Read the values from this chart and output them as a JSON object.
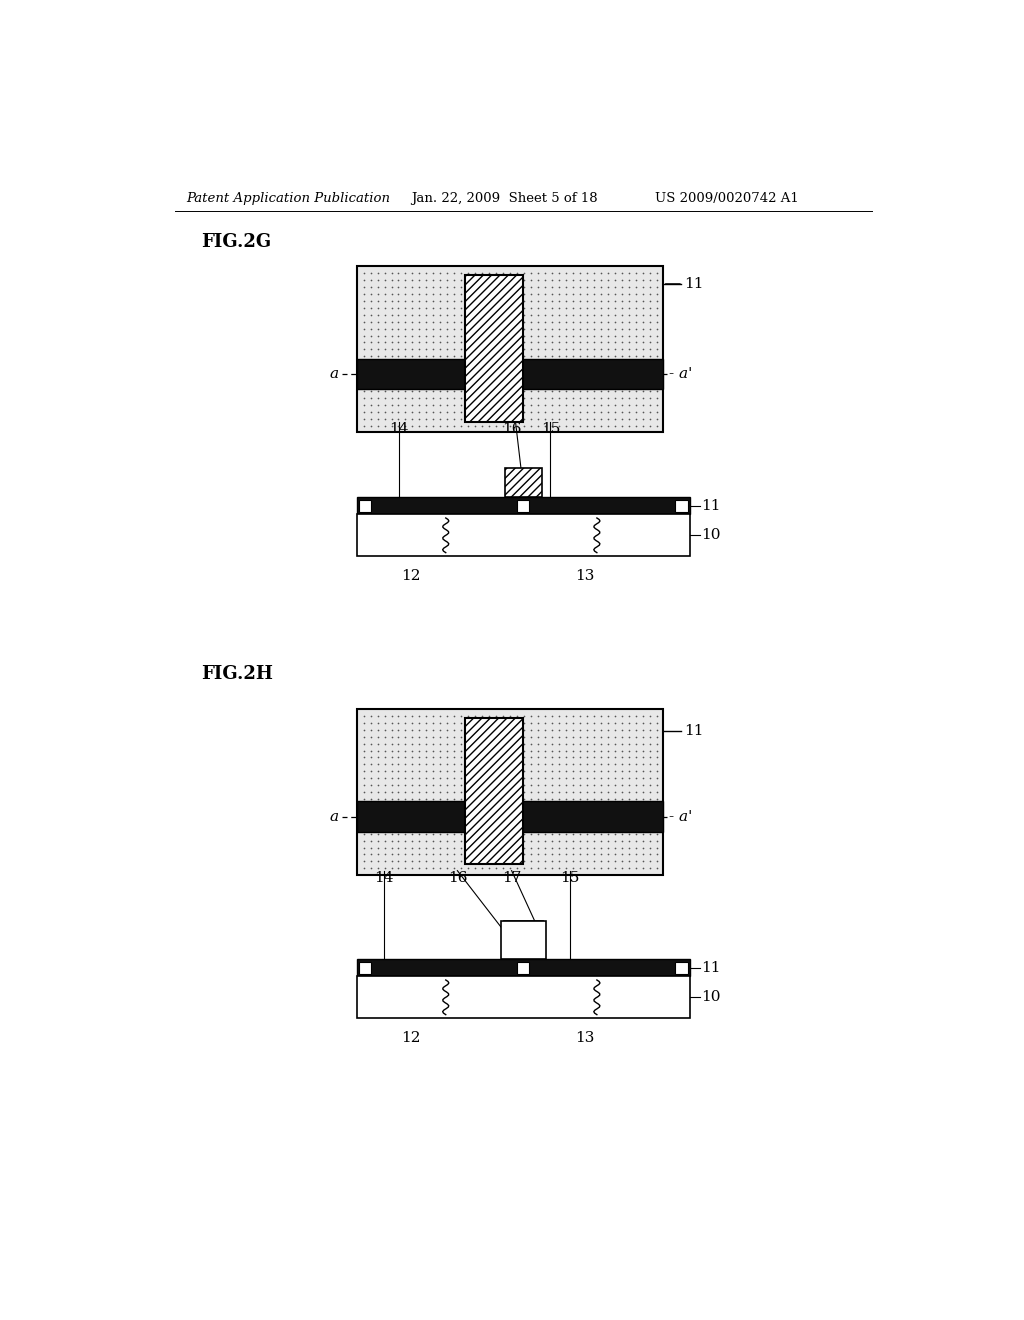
{
  "header_left": "Patent Application Publication",
  "header_mid": "Jan. 22, 2009  Sheet 5 of 18",
  "header_right": "US 2009/0020742 A1",
  "fig2g_label": "FIG.2G",
  "fig2h_label": "FIG.2H",
  "bg_color": "#ffffff",
  "stipple_color": "#e8e8e8",
  "black_fill": "#111111",
  "white_fill": "#ffffff"
}
